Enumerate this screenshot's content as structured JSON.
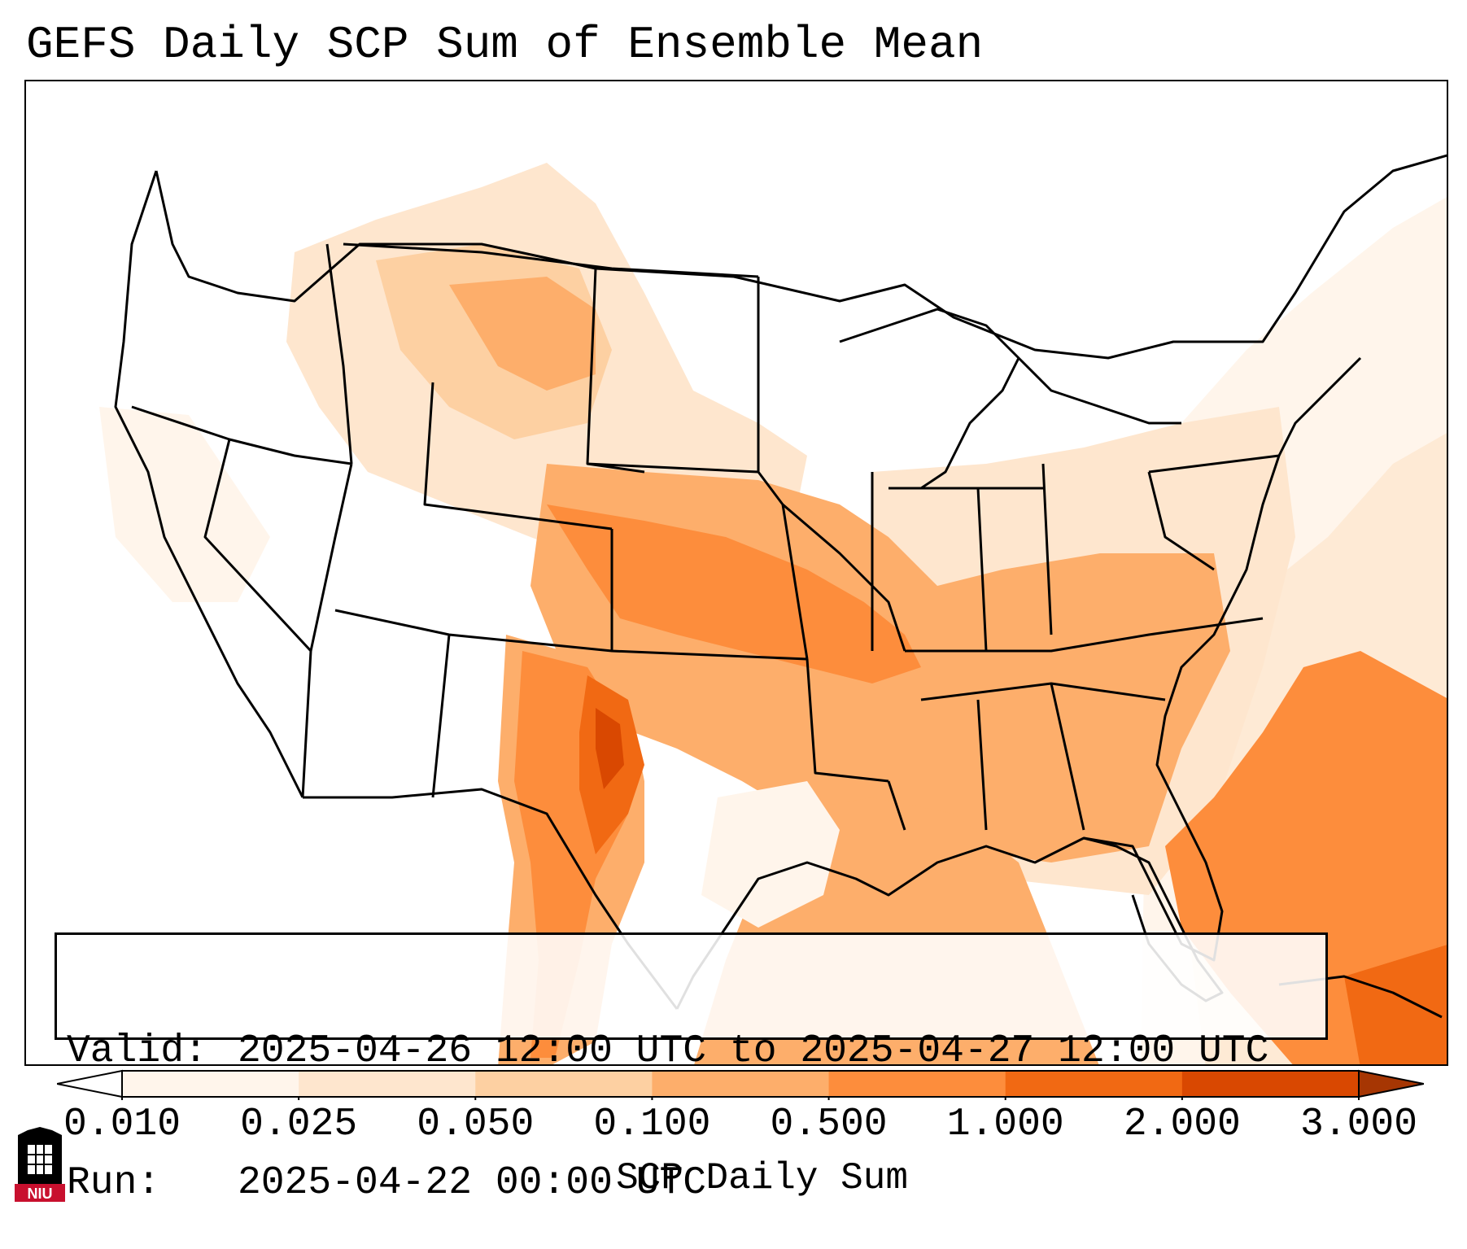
{
  "title": "GEFS Daily SCP Sum of Ensemble Mean",
  "info": {
    "valid_label": "Valid:",
    "valid_value": "2025-04-26 12:00 UTC to 2025-04-27 12:00 UTC",
    "run_label": "Run:",
    "run_value": "2025-04-22 00:00 UTC"
  },
  "colorbar": {
    "label": "SCP Daily Sum",
    "ticks": [
      "0.010",
      "0.025",
      "0.050",
      "0.100",
      "0.500",
      "1.000",
      "2.000",
      "3.000"
    ],
    "bin_colors": [
      "#fff5eb",
      "#fee6ce",
      "#fdd0a2",
      "#fdae6b",
      "#fd8d3c",
      "#f16913",
      "#d94801"
    ],
    "under_color": "#ffffff",
    "over_color": "#a63603"
  },
  "logo": {
    "text": "NIU",
    "colors": {
      "primary": "#c8102e",
      "secondary": "#000000"
    }
  },
  "map": {
    "region": "Contiguous United States",
    "field": "SCP daily sum",
    "colors": {
      "lightest": "#fff5eb",
      "light": "#fee6ce",
      "light_mid": "#fdd0a2",
      "mid": "#fdae6b",
      "mid_dark": "#fd8d3c",
      "dark": "#f16913",
      "darkest": "#d94801",
      "border": "#000000"
    }
  }
}
